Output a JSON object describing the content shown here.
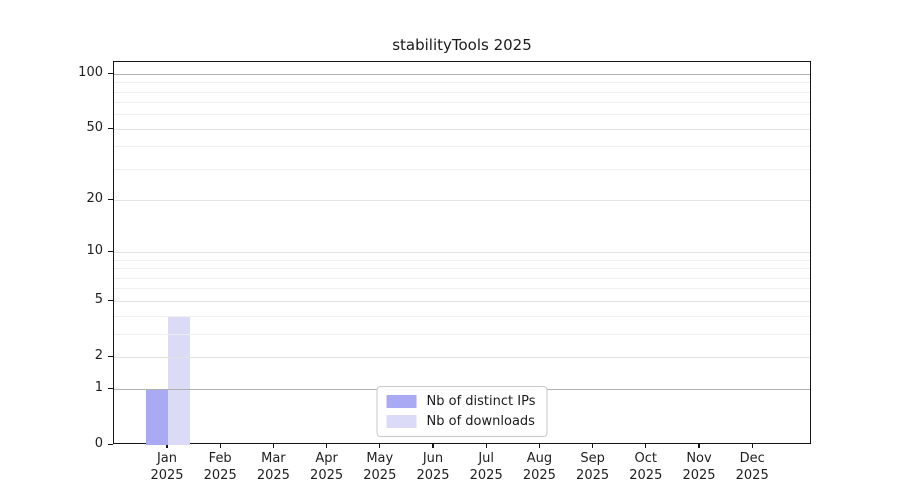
{
  "title": "stabilityTools 2025",
  "colors": {
    "distinct_ips": "#a9a9f4",
    "downloads": "#dbdbf8",
    "grid_major_strong": "#b0b0b0",
    "grid_major": "#e2e2e2",
    "grid_minor": "#efefef",
    "axis": "#151515",
    "text": "#1f1f1f"
  },
  "legend": {
    "items": [
      {
        "label": "Nb of distinct IPs",
        "color_key": "distinct_ips"
      },
      {
        "label": "Nb of downloads",
        "color_key": "downloads"
      }
    ]
  },
  "chart_data": {
    "type": "bar",
    "title": "stabilityTools 2025",
    "categories": [
      "Jan",
      "Feb",
      "Mar",
      "Apr",
      "May",
      "Jun",
      "Jul",
      "Aug",
      "Sep",
      "Oct",
      "Nov",
      "Dec"
    ],
    "x_tick_second_line": "2025",
    "series": [
      {
        "name": "Nb of distinct IPs",
        "values": [
          1,
          0,
          0,
          0,
          0,
          0,
          0,
          0,
          0,
          0,
          0,
          0
        ]
      },
      {
        "name": "Nb of downloads",
        "values": [
          4,
          0,
          0,
          0,
          0,
          0,
          0,
          0,
          0,
          0,
          0,
          0
        ]
      }
    ],
    "yscale": "log1p",
    "ylim": [
      0,
      116
    ],
    "yticks": [
      0,
      1,
      2,
      5,
      10,
      20,
      50,
      100
    ],
    "yticks_minor": [
      3,
      4,
      6,
      7,
      8,
      9,
      30,
      40,
      60,
      70,
      80,
      90
    ],
    "emphasized_gridlines": [
      1,
      100
    ],
    "grid": true,
    "legend_position": "lower center"
  }
}
